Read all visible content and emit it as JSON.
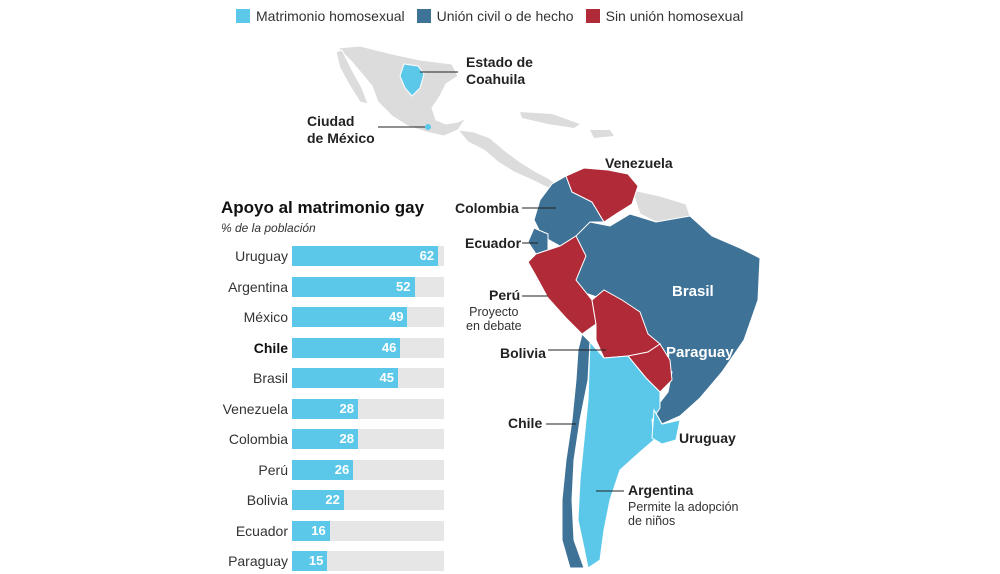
{
  "legend": {
    "items": [
      {
        "label": "Matrimonio homosexual",
        "color": "#5bc8ea"
      },
      {
        "label": "Unión civil o de hecho",
        "color": "#3f7297"
      },
      {
        "label": "Sin unión homosexual",
        "color": "#b02a37"
      }
    ]
  },
  "map": {
    "colors": {
      "land": "#dcdcdc",
      "marriage": "#5bc8ea",
      "civil": "#3f7297",
      "none": "#b02a37"
    },
    "labels": {
      "coahuila": "Estado de\nCoahuila",
      "cdmx": "Ciudad\nde México",
      "venezuela": "Venezuela",
      "colombia": "Colombia",
      "ecuador": "Ecuador",
      "peru": "Perú",
      "peru_note": "Proyecto\nen debate",
      "bolivia": "Bolivia",
      "brasil": "Brasil",
      "paraguay": "Paraguay",
      "chile": "Chile",
      "uruguay": "Uruguay",
      "argentina": "Argentina",
      "argentina_note": "Permite la adopción\nde niños"
    }
  },
  "chart_data": {
    "type": "bar",
    "title": "Apoyo al matrimonio gay",
    "subtitle": "% de la población",
    "categories": [
      "Uruguay",
      "Argentina",
      "México",
      "Chile",
      "Brasil",
      "Venezuela",
      "Colombia",
      "Perú",
      "Bolivia",
      "Ecuador",
      "Paraguay"
    ],
    "values": [
      62,
      52,
      49,
      46,
      45,
      28,
      28,
      26,
      22,
      16,
      15
    ],
    "highlight": "Chile",
    "xlim": [
      0,
      100
    ],
    "bar_color": "#5bc8ea",
    "track_color": "#e6e6e6"
  }
}
